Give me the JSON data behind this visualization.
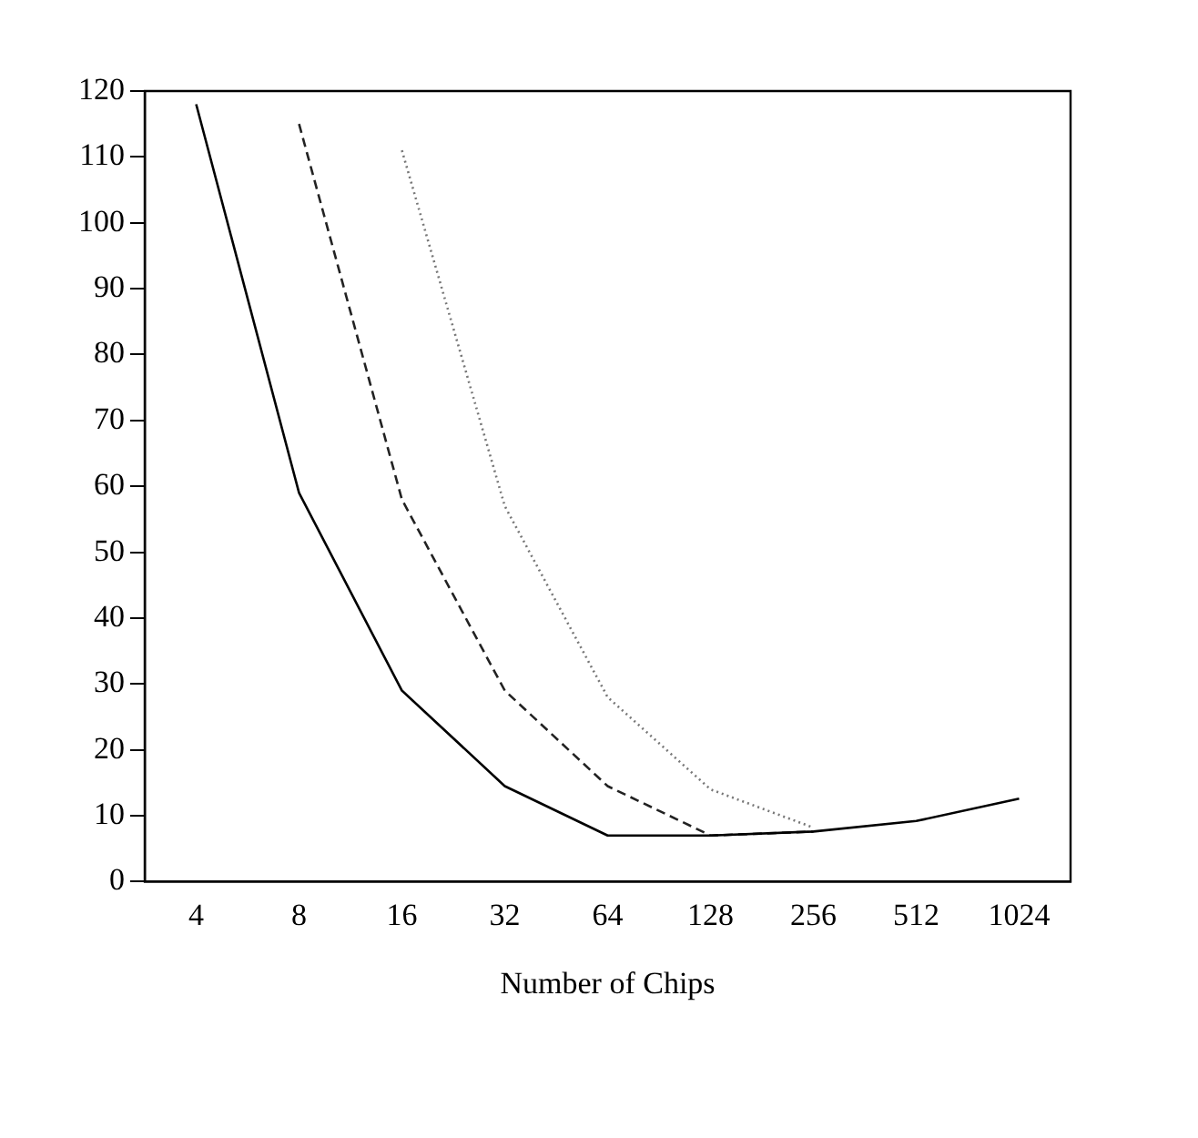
{
  "chart_data": {
    "type": "line",
    "xlabel": "Number of Chips",
    "categories": [
      "4",
      "8",
      "16",
      "32",
      "64",
      "128",
      "256",
      "512",
      "1024"
    ],
    "series": [
      {
        "color": "#000000",
        "line_style": "solid",
        "values": [
          118,
          59,
          29,
          14.5,
          7,
          7,
          7.6,
          9.2,
          12.6
        ]
      },
      {
        "color": "#222222",
        "line_style": "dashed",
        "values": [
          null,
          115,
          58,
          29,
          14.5,
          7,
          7.6,
          null,
          null
        ]
      },
      {
        "color": "#777777",
        "line_style": "dotted",
        "values": [
          null,
          null,
          111,
          57,
          28,
          14,
          8.2,
          null,
          null
        ]
      }
    ],
    "ylim": [
      0,
      120
    ],
    "yticks": [
      0,
      10,
      20,
      30,
      40,
      50,
      60,
      70,
      80,
      90,
      100,
      110,
      120
    ],
    "grid": false,
    "legend": false,
    "marker": "none"
  }
}
